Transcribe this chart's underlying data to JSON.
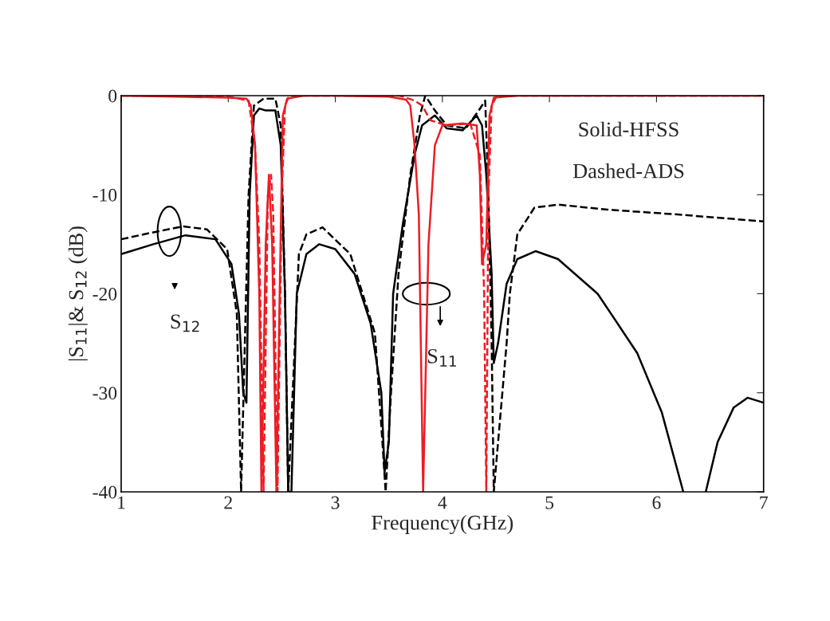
{
  "chart_data": {
    "type": "line",
    "xlabel": "Frequency(GHz)",
    "ylabel": "|S$_{11}$|& S$_{12}$ (dB)",
    "xlim": [
      1,
      7
    ],
    "xticks": [
      1,
      2,
      3,
      4,
      5,
      6,
      7
    ],
    "ylim": [
      -40,
      0
    ],
    "yticks": [
      -40,
      -30,
      -20,
      -10,
      0
    ],
    "grid": false,
    "legend": false,
    "marker": "none",
    "series": [
      {
        "color": "#000000",
        "line_style": "solid",
        "x": [
          1.0,
          1.3,
          1.6,
          1.88,
          2.03,
          2.1,
          2.14,
          2.17,
          2.2,
          2.24,
          2.29,
          2.35,
          2.44,
          2.49,
          2.53,
          2.56,
          2.59,
          2.64,
          2.73,
          2.85,
          3.0,
          3.18,
          3.33,
          3.43,
          3.46,
          3.5,
          3.54,
          3.63,
          3.74,
          3.81,
          3.93,
          4.04,
          4.19,
          4.32,
          4.37,
          4.41,
          4.46,
          4.48,
          4.52,
          4.6,
          4.7,
          4.87,
          5.08,
          5.45,
          5.82,
          6.05,
          6.25,
          6.3,
          6.42,
          6.46,
          6.57,
          6.72,
          6.85,
          7.0
        ],
        "values": [
          -16,
          -15,
          -14.1,
          -14.5,
          -17,
          -22,
          -30,
          -31,
          -10,
          -2,
          -1.3,
          -1.5,
          -1.5,
          -5,
          -20,
          -40,
          -40,
          -20,
          -16,
          -15,
          -15.5,
          -18,
          -23,
          -30,
          -38,
          -35,
          -20,
          -13,
          -6,
          -3,
          -2,
          -3.3,
          -3.5,
          -2,
          -3,
          -8,
          -18,
          -27,
          -25,
          -19,
          -16.5,
          -15.7,
          -16.5,
          -20,
          -26,
          -32,
          -40,
          null,
          null,
          -40,
          -35,
          -31.5,
          -30.5,
          -31
        ]
      },
      {
        "color": "#000000",
        "line_style": "dashed",
        "x": [
          1.0,
          1.3,
          1.58,
          1.8,
          1.99,
          2.08,
          2.12,
          2.19,
          2.24,
          2.33,
          2.44,
          2.49,
          2.53,
          2.56,
          2.66,
          2.73,
          2.88,
          3.14,
          3.37,
          3.44,
          3.47,
          3.52,
          3.59,
          3.7,
          3.79,
          3.84,
          3.93,
          4.04,
          4.22,
          4.34,
          4.4,
          4.43,
          4.46,
          4.48,
          4.6,
          4.63,
          4.7,
          4.86,
          5.08,
          5.53,
          6.2,
          7.0
        ],
        "values": [
          -14.5,
          -13.8,
          -13.2,
          -13.5,
          -15.5,
          -22,
          -40,
          -10,
          -1,
          -0.3,
          -0.3,
          -3,
          -20,
          -40,
          -16,
          -14,
          -13.3,
          -16,
          -24,
          -35,
          -40,
          -30,
          -18,
          -8,
          -2,
          0,
          -1.5,
          -3,
          -3.3,
          -1.5,
          -0.5,
          -10,
          -25,
          -40,
          -25,
          -20,
          -14,
          -11.3,
          -11,
          -11.5,
          -12,
          -12.7
        ]
      },
      {
        "color": "#ed1c24",
        "line_style": "solid",
        "x": [
          1.0,
          1.5,
          2.0,
          2.17,
          2.21,
          2.25,
          2.29,
          2.31,
          2.35,
          2.38,
          2.41,
          2.45,
          2.48,
          2.51,
          2.55,
          2.7,
          3.0,
          3.5,
          3.66,
          3.7,
          3.74,
          3.78,
          3.82,
          3.87,
          3.93,
          4.0,
          4.19,
          4.32,
          4.35,
          4.37,
          4.41,
          4.44,
          4.48,
          4.7,
          5.5,
          7.0
        ],
        "values": [
          0,
          -0.1,
          -0.2,
          -0.3,
          -1,
          -5,
          -20,
          -40,
          -15,
          -8,
          -15,
          -40,
          -20,
          -2,
          -0.3,
          0,
          0,
          -0.1,
          -0.4,
          -1,
          -5,
          -12,
          -40,
          -15,
          -5,
          -3,
          -2.8,
          -3,
          -8,
          -17,
          -15,
          -2,
          -0.2,
          0,
          0,
          0
        ]
      },
      {
        "color": "#ed1c24",
        "line_style": "dashed",
        "x": [
          1.0,
          1.5,
          2.0,
          2.19,
          2.25,
          2.29,
          2.33,
          2.37,
          2.4,
          2.42,
          2.46,
          2.5,
          2.53,
          2.57,
          3.0,
          3.6,
          3.74,
          3.81,
          3.89,
          4.04,
          4.26,
          4.35,
          4.39,
          4.41,
          4.43,
          4.46,
          4.51,
          7.0
        ],
        "values": [
          0,
          0,
          -0.1,
          -0.5,
          -5,
          -15,
          -40,
          -10,
          -8,
          -12,
          -40,
          -10,
          -1,
          0,
          0,
          0,
          -0.5,
          -1,
          -2.5,
          -3,
          -2.8,
          -6,
          -20,
          -40,
          -10,
          -1,
          0,
          0
        ]
      }
    ],
    "annotations": [
      "S$_{12}$",
      "S$_{11}$",
      "Solid-HFSS",
      "Dashed-ADS"
    ]
  }
}
